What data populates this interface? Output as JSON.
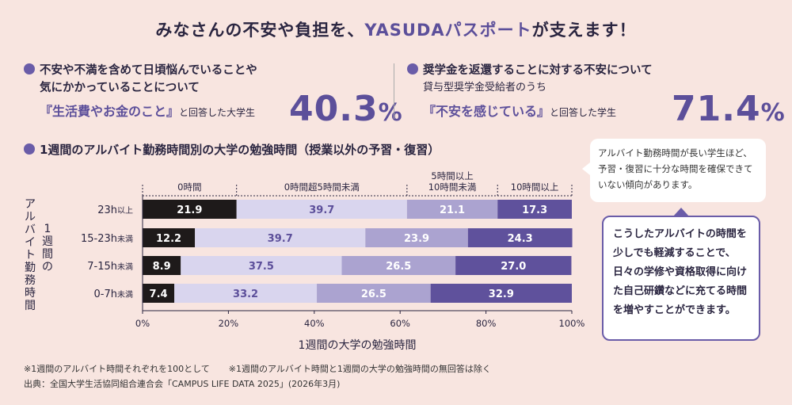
{
  "title": {
    "prefix": "みなさんの不安や負担を、",
    "accent": "YASUDAパスポート",
    "suffix": "が支えます！"
  },
  "stat1": {
    "line1": "不安や不満を含めて日頃悩んでいることや",
    "line2": "気にかかっていることについて",
    "highlight": "『生活費やお金のこと』",
    "highlight_suffix": "と回答した大学生",
    "value": "40.3",
    "unit": "%"
  },
  "stat2": {
    "line1": "奨学金を返還することに対する不安について",
    "line2": "貸与型奨学金受給者のうち",
    "highlight": "『不安を感じている』",
    "highlight_suffix": "と回答した学生",
    "value": "71.4",
    "unit": "%"
  },
  "chart_title": "1週間のアルバイト勤務時間別の大学の勉強時間（授業以外の予習・復習）",
  "chart_data": {
    "type": "bar",
    "orientation": "horizontal-stacked",
    "categories": [
      "23h以上",
      "15-23h未満",
      "7-15h未満",
      "0-7h未満"
    ],
    "category_parts": [
      [
        "23h",
        "以上"
      ],
      [
        "15-23h",
        "未満"
      ],
      [
        "7-15h",
        "未満"
      ],
      [
        "0-7h",
        "未満"
      ]
    ],
    "series": [
      {
        "name": "0時間",
        "color": "#1e1a1a",
        "text_color": "#ffffff",
        "values": [
          21.9,
          12.2,
          8.9,
          7.4
        ]
      },
      {
        "name": "0時間超5時間未満",
        "color": "#d9d5ee",
        "text_color": "#5c4f9a",
        "values": [
          39.7,
          39.7,
          37.5,
          33.2
        ]
      },
      {
        "name": "5時間以上10時間未満",
        "name_lines": [
          "5時間以上",
          "10時間未満"
        ],
        "color": "#aba3d0",
        "text_color": "#ffffff",
        "values": [
          21.1,
          23.9,
          26.5,
          26.5
        ]
      },
      {
        "name": "10時間以上",
        "color": "#5f519c",
        "text_color": "#ffffff",
        "values": [
          17.3,
          24.3,
          27.0,
          32.9
        ]
      }
    ],
    "xlim": [
      0,
      100
    ],
    "xticks": [
      "0%",
      "20%",
      "40%",
      "60%",
      "80%",
      "100%"
    ],
    "xlabel": "1週間の大学の勉強時間",
    "ylabel": "アルバイト勤務時間",
    "ylabel_lines": [
      "1週間の",
      "アルバイト勤務時間"
    ]
  },
  "bubble1": {
    "text": "アルバイト勤務時間が長い学生ほど、予習・復習に十分な時間を確保できていない傾向があります。"
  },
  "bubble2": {
    "text": "こうしたアルバイトの時間を少しでも軽減することで、日々の学修や資格取得に向けた自己研鑽などに充てる時間を増やすことができます。"
  },
  "notes": {
    "note1": "※1週間のアルバイト時間それぞれを100として",
    "note2": "※1週間のアルバイト時間と1週間の大学の勉強時間の無回答は除く",
    "source": "出典：全国大学生活協同組合連合会「CAMPUS LIFE DATA 2025」(2026年3月)"
  }
}
